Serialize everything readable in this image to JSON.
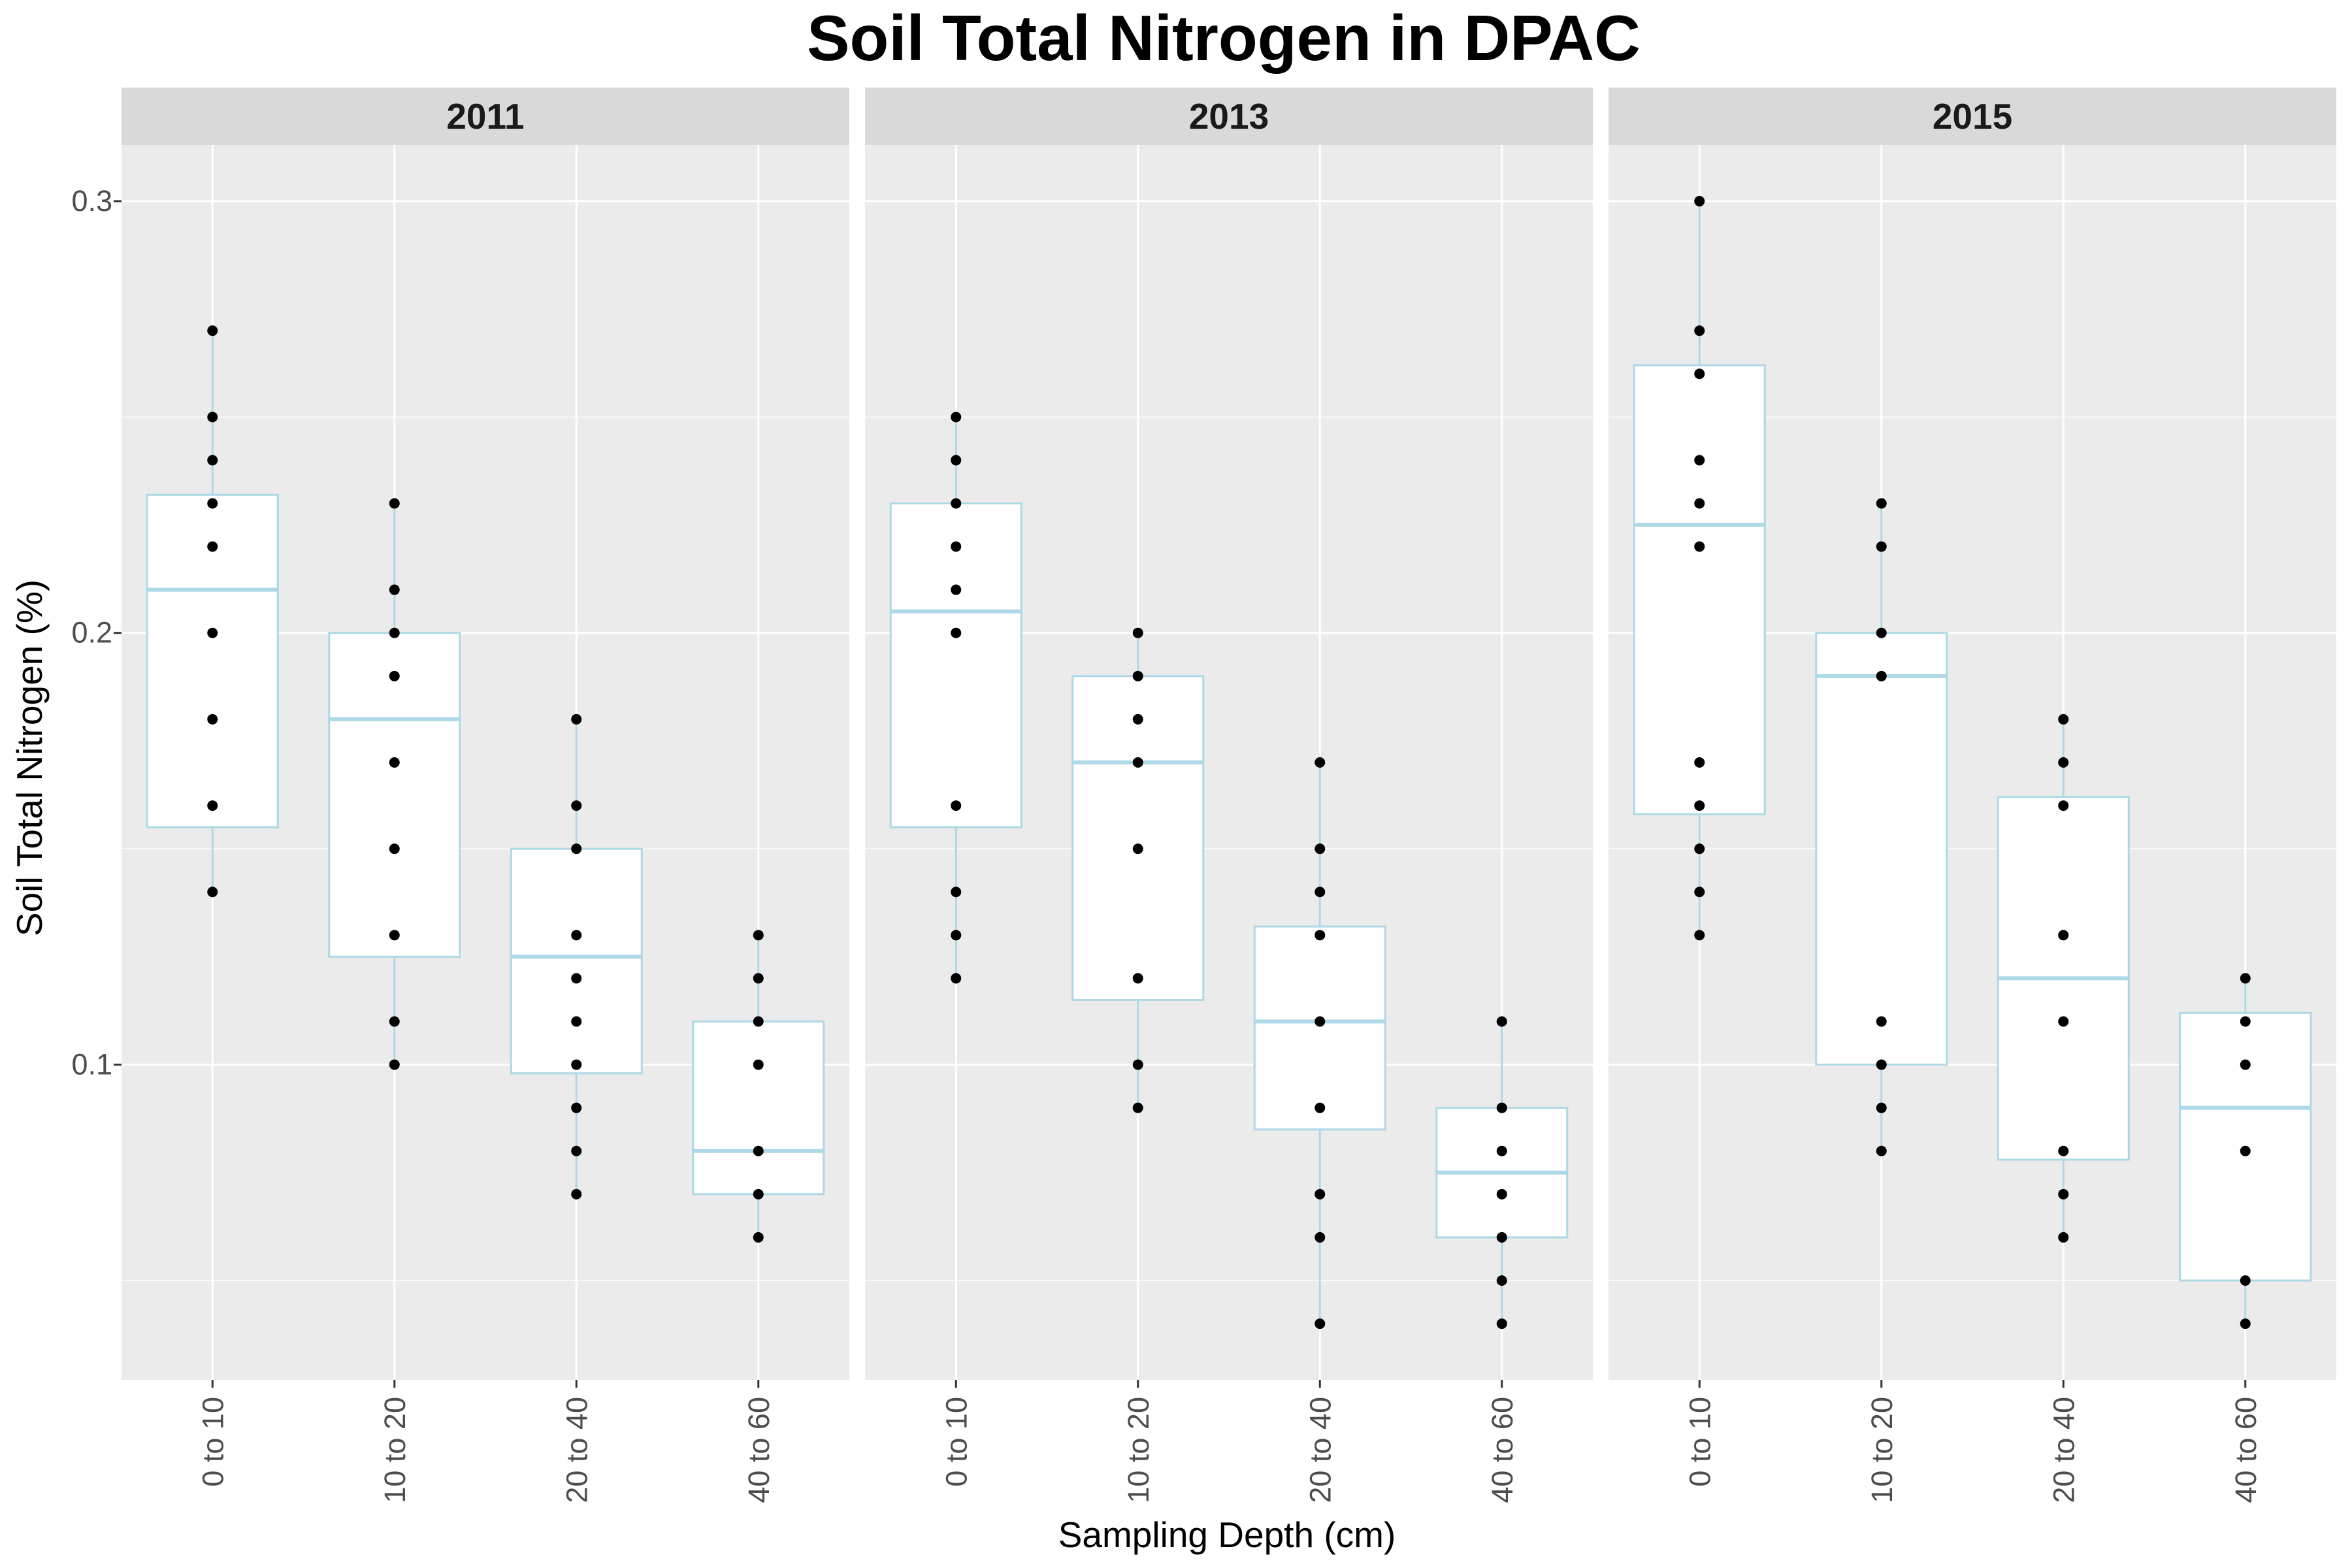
{
  "chart_data": {
    "type": "boxplot",
    "title": "Soil Total Nitrogen in DPAC",
    "xlabel": "Sampling Depth (cm)",
    "ylabel": "Soil Total Nitrogen (%)",
    "ylim": [
      0.027,
      0.313
    ],
    "y_ticks": [
      0.1,
      0.2,
      0.3
    ],
    "y_tick_labels": [
      "0.1",
      "0.2",
      "0.3"
    ],
    "y_minor_ticks": [
      0.05,
      0.15,
      0.25
    ],
    "categories": [
      "0 to 10",
      "10 to 20",
      "20 to 40",
      "40 to 60"
    ],
    "grid": true,
    "colors": {
      "box_outline": "#add8e6",
      "point": "#000000",
      "panel_background": "#ebebeb",
      "strip_background": "#d9d9d9",
      "grid": "#ffffff"
    },
    "panels": [
      {
        "label": "2011",
        "boxes": [
          {
            "category": "0 to 10",
            "q1": 0.155,
            "median": 0.21,
            "q3": 0.232,
            "whisker_low": 0.14,
            "whisker_high": 0.27,
            "points": [
              0.14,
              0.16,
              0.18,
              0.2,
              0.22,
              0.23,
              0.24,
              0.25,
              0.27
            ]
          },
          {
            "category": "10 to 20",
            "q1": 0.125,
            "median": 0.18,
            "q3": 0.2,
            "whisker_low": 0.1,
            "whisker_high": 0.23,
            "points": [
              0.1,
              0.11,
              0.13,
              0.15,
              0.17,
              0.19,
              0.2,
              0.21,
              0.23
            ]
          },
          {
            "category": "20 to 40",
            "q1": 0.098,
            "median": 0.125,
            "q3": 0.15,
            "whisker_low": 0.07,
            "whisker_high": 0.18,
            "points": [
              0.07,
              0.08,
              0.09,
              0.1,
              0.11,
              0.12,
              0.13,
              0.15,
              0.16,
              0.18
            ]
          },
          {
            "category": "40 to 60",
            "q1": 0.07,
            "median": 0.08,
            "q3": 0.11,
            "whisker_low": 0.06,
            "whisker_high": 0.13,
            "points": [
              0.06,
              0.07,
              0.08,
              0.1,
              0.11,
              0.12,
              0.13
            ]
          }
        ]
      },
      {
        "label": "2013",
        "boxes": [
          {
            "category": "0 to 10",
            "q1": 0.155,
            "median": 0.205,
            "q3": 0.23,
            "whisker_low": 0.12,
            "whisker_high": 0.25,
            "points": [
              0.12,
              0.13,
              0.14,
              0.16,
              0.2,
              0.21,
              0.22,
              0.23,
              0.24,
              0.25
            ]
          },
          {
            "category": "10 to 20",
            "q1": 0.115,
            "median": 0.17,
            "q3": 0.19,
            "whisker_low": 0.09,
            "whisker_high": 0.2,
            "points": [
              0.09,
              0.1,
              0.12,
              0.15,
              0.17,
              0.18,
              0.19,
              0.2
            ]
          },
          {
            "category": "20 to 40",
            "q1": 0.085,
            "median": 0.11,
            "q3": 0.132,
            "whisker_low": 0.04,
            "whisker_high": 0.17,
            "points": [
              0.04,
              0.06,
              0.07,
              0.09,
              0.11,
              0.13,
              0.14,
              0.15,
              0.17
            ]
          },
          {
            "category": "40 to 60",
            "q1": 0.06,
            "median": 0.075,
            "q3": 0.09,
            "whisker_low": 0.04,
            "whisker_high": 0.11,
            "points": [
              0.04,
              0.05,
              0.06,
              0.07,
              0.08,
              0.09,
              0.11
            ]
          }
        ]
      },
      {
        "label": "2015",
        "boxes": [
          {
            "category": "0 to 10",
            "q1": 0.158,
            "median": 0.225,
            "q3": 0.262,
            "whisker_low": 0.13,
            "whisker_high": 0.3,
            "points": [
              0.13,
              0.14,
              0.15,
              0.16,
              0.17,
              0.22,
              0.23,
              0.24,
              0.26,
              0.27,
              0.3
            ]
          },
          {
            "category": "10 to 20",
            "q1": 0.1,
            "median": 0.19,
            "q3": 0.2,
            "whisker_low": 0.08,
            "whisker_high": 0.23,
            "points": [
              0.08,
              0.09,
              0.1,
              0.11,
              0.19,
              0.2,
              0.22,
              0.23
            ]
          },
          {
            "category": "20 to 40",
            "q1": 0.078,
            "median": 0.12,
            "q3": 0.162,
            "whisker_low": 0.06,
            "whisker_high": 0.18,
            "points": [
              0.06,
              0.07,
              0.08,
              0.11,
              0.13,
              0.16,
              0.17,
              0.18
            ]
          },
          {
            "category": "40 to 60",
            "q1": 0.05,
            "median": 0.09,
            "q3": 0.112,
            "whisker_low": 0.04,
            "whisker_high": 0.12,
            "points": [
              0.04,
              0.05,
              0.08,
              0.1,
              0.11,
              0.12
            ]
          }
        ]
      }
    ]
  }
}
